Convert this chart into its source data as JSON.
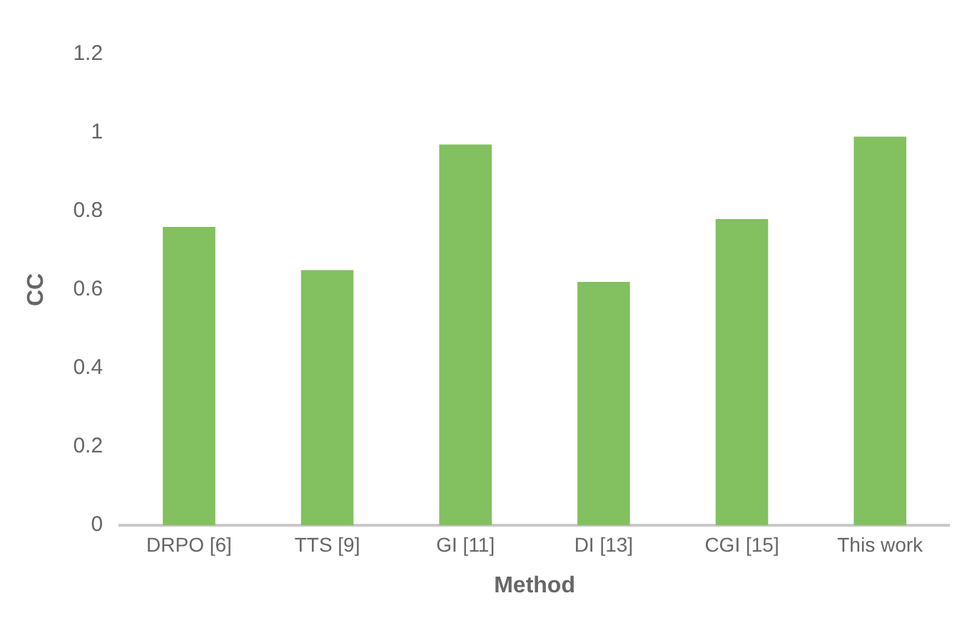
{
  "chart_data": {
    "type": "bar",
    "categories": [
      "DRPO [6]",
      "TTS [9]",
      "GI [11]",
      "DI [13]",
      "CGI [15]",
      "This work"
    ],
    "values": [
      0.76,
      0.65,
      0.97,
      0.62,
      0.78,
      0.99
    ],
    "color": "#82c060",
    "xlabel": "Method",
    "ylabel": "CC",
    "ylim": [
      0,
      1.2
    ],
    "yticks": [
      0,
      {
        "value": 0.2,
        "label": "0.2"
      },
      {
        "value": 0.4,
        "label": "0.4"
      },
      {
        "value": 0.6,
        "label": "0.6"
      },
      {
        "value": 0.8,
        "label": "0.8"
      },
      1,
      {
        "value": 1.2,
        "label": "1.2"
      }
    ],
    "grid": false,
    "legend": false
  }
}
